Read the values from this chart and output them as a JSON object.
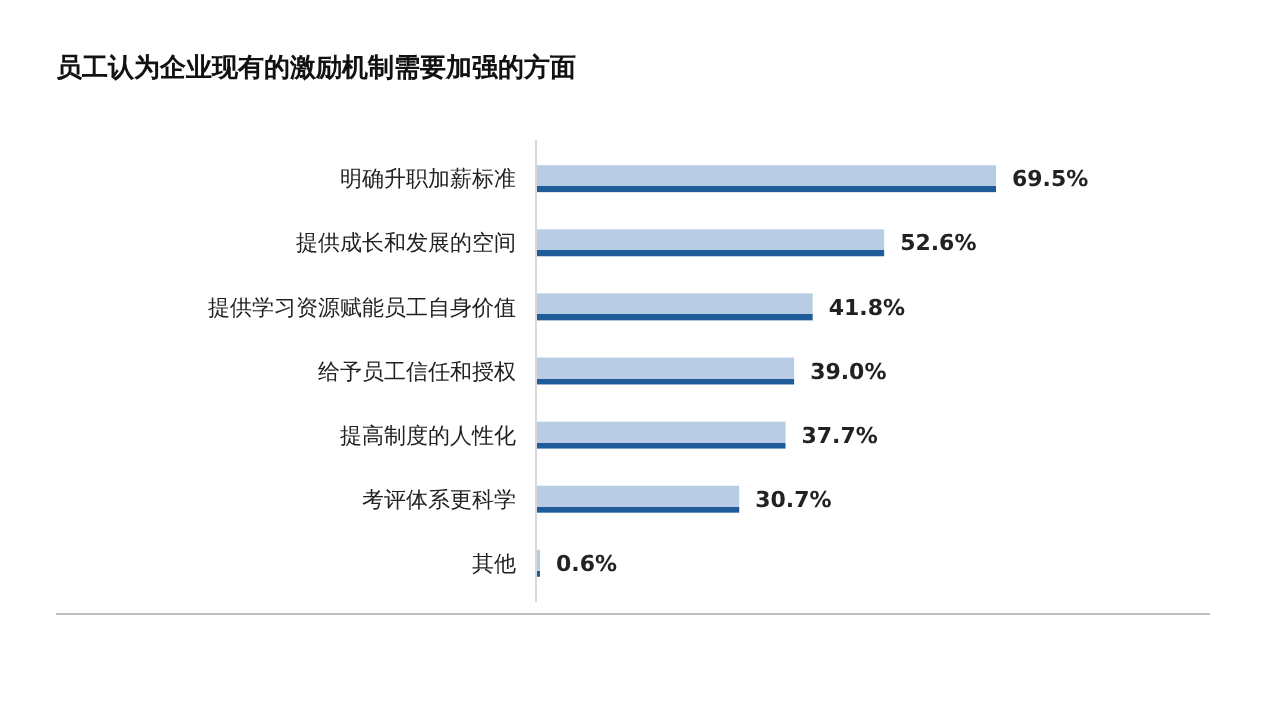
{
  "chart_data": {
    "type": "bar",
    "orientation": "horizontal",
    "relative": false,
    "title": "员工认为企业现有的激励机制需要加强的方面",
    "categories": [
      "明确升职加薪标准",
      "提供成长和发展的空间",
      "提供学习资源赋能员工自身价值",
      "给予员工信任和授权",
      "提高制度的人性化",
      "考评体系更科学",
      "其他"
    ],
    "values": [
      69.5,
      52.6,
      41.8,
      39.0,
      37.7,
      30.7,
      0.6
    ],
    "value_labels": [
      "69.5%",
      "52.6%",
      "41.8%",
      "39.0%",
      "37.7%",
      "30.7%",
      "0.6%"
    ],
    "color": "#b8cce4"
  }
}
